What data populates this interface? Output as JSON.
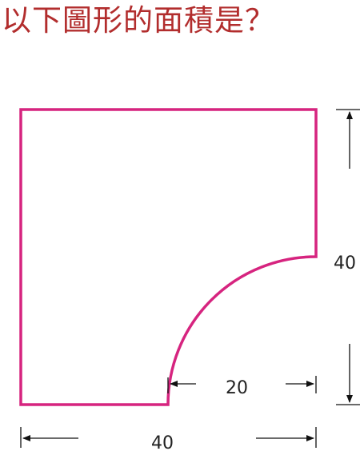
{
  "question": {
    "text": "以下圖形的面積是？"
  },
  "figure": {
    "shape_color": "#d6247f",
    "dimension_color": "#111111",
    "labels": {
      "height": "40",
      "radius": "20",
      "width": "40"
    }
  }
}
